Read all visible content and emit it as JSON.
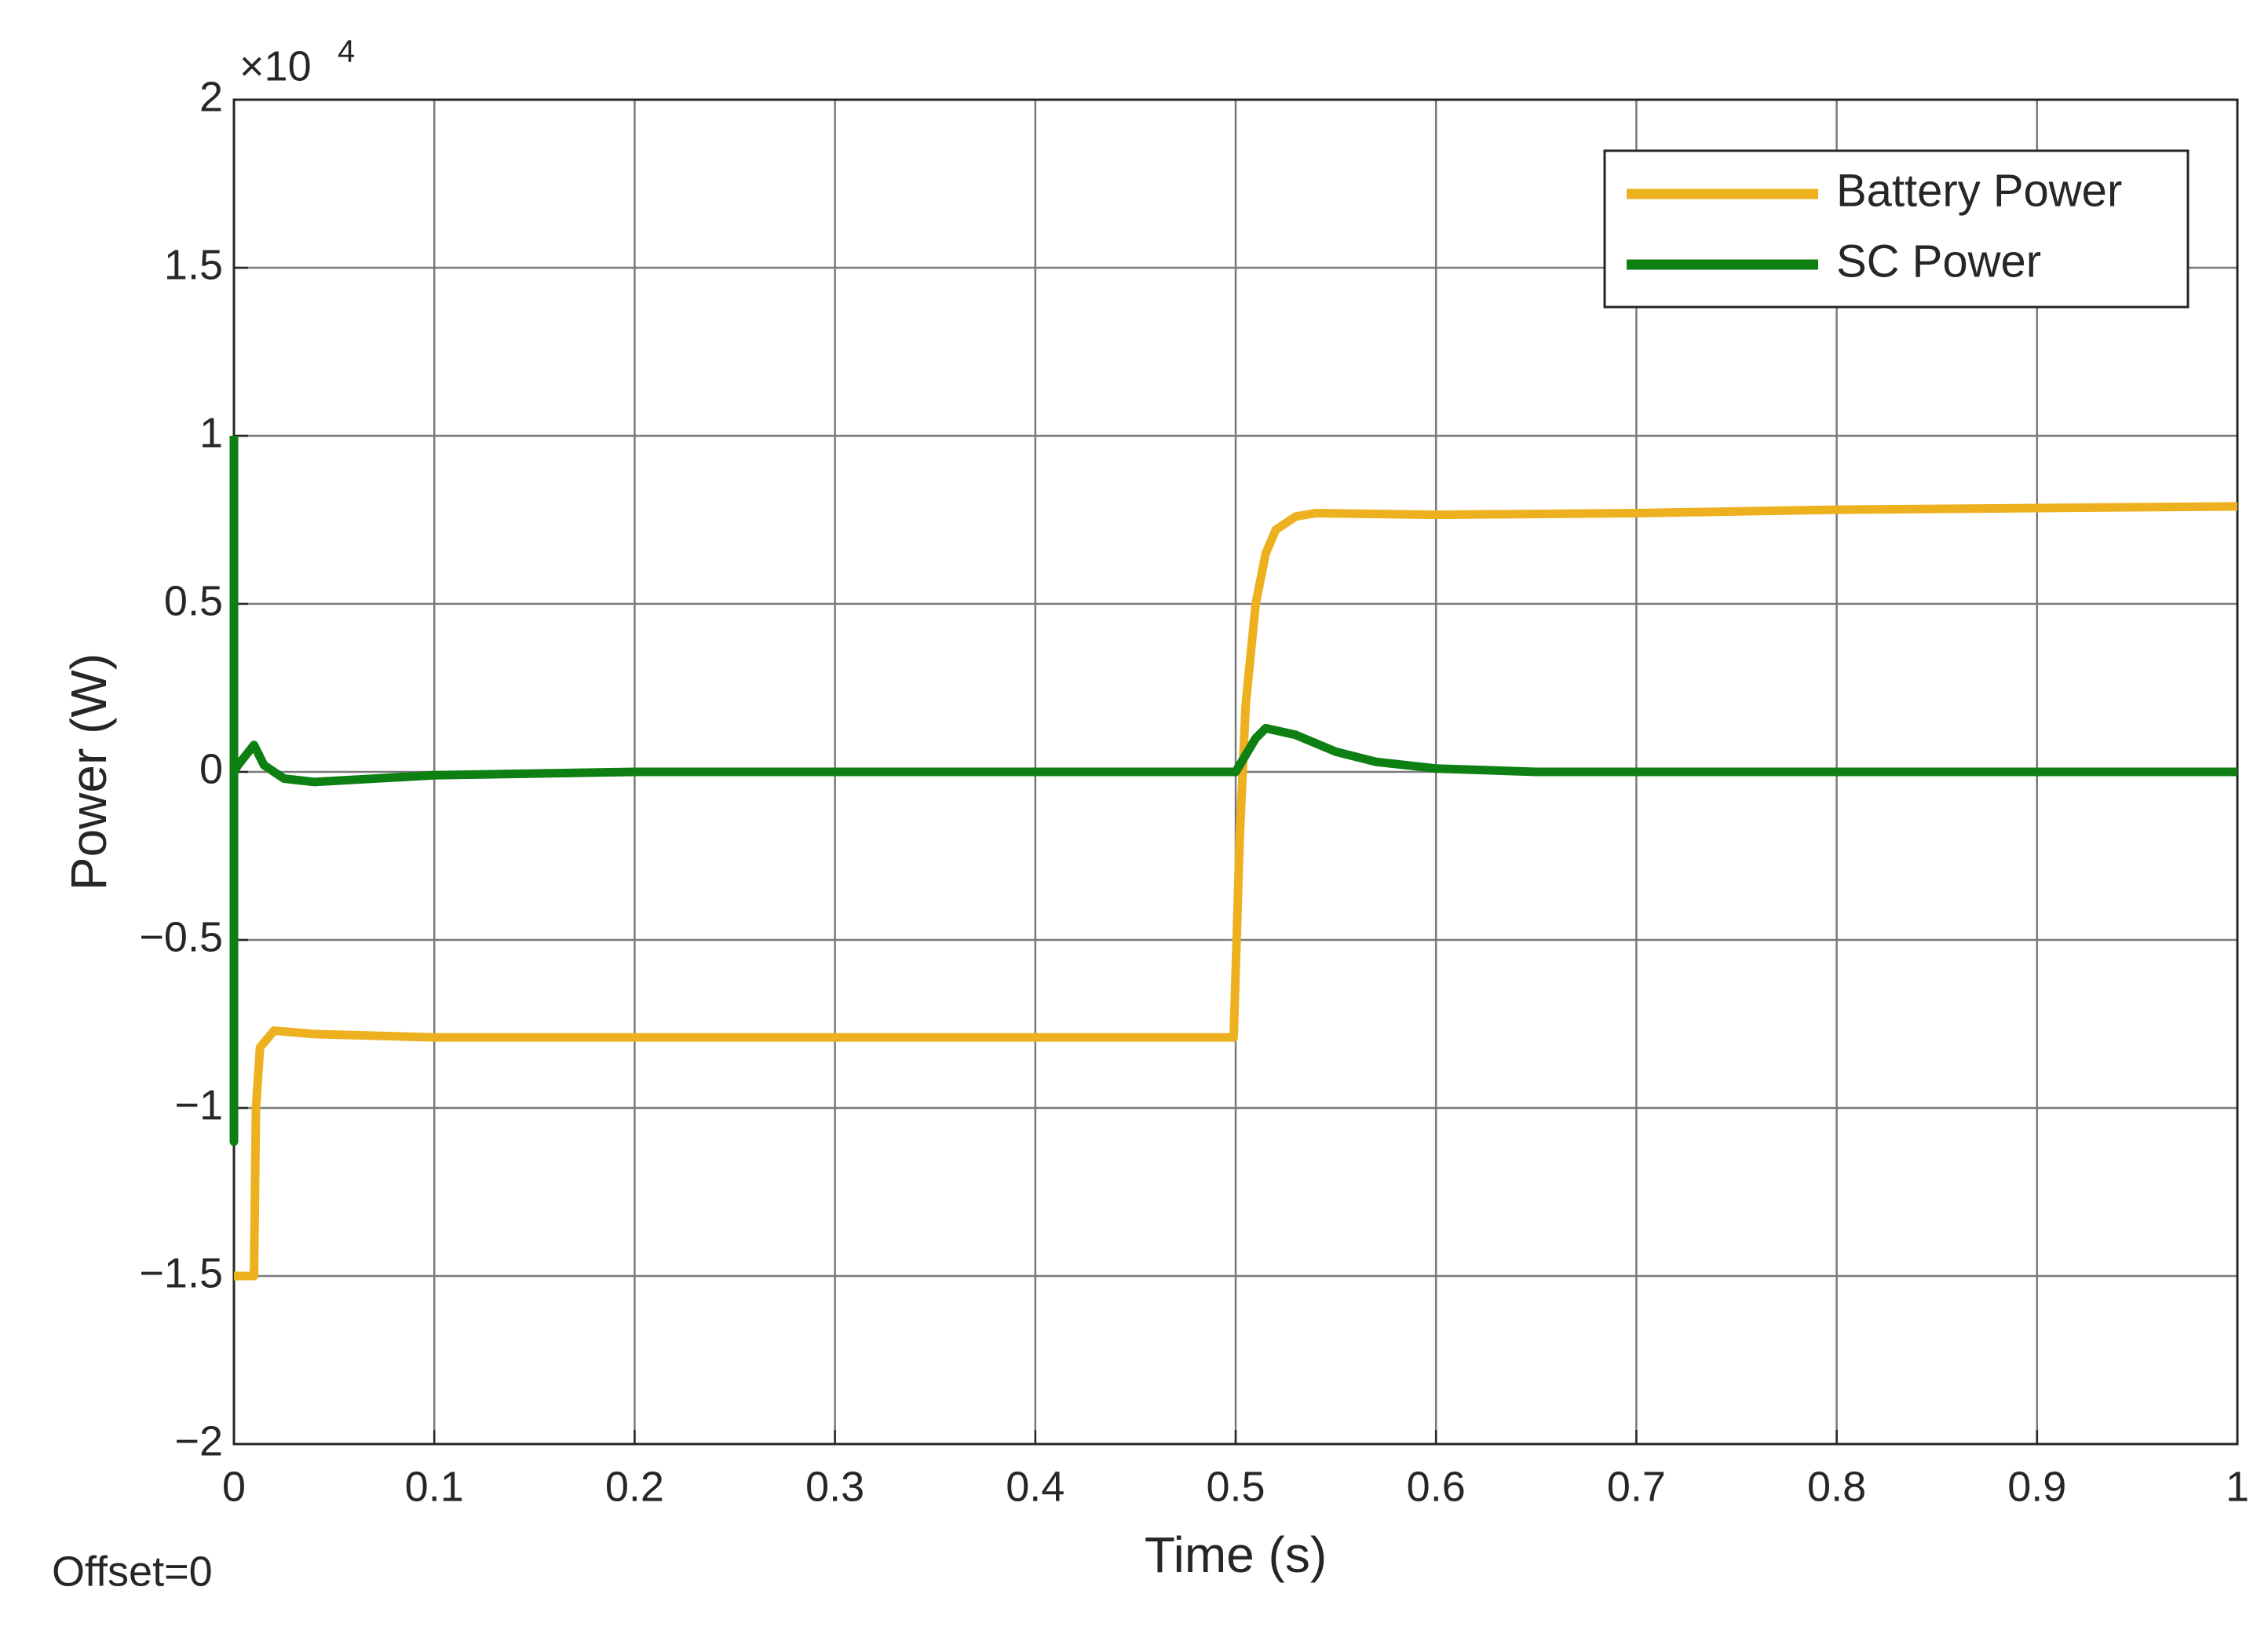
{
  "chart_data": {
    "type": "line",
    "xlabel": "Time (s)",
    "ylabel": "Power (W)",
    "y_multiplier": "×10",
    "y_exponent": 4,
    "note": "Offset=0",
    "grid": true,
    "legend": "top-right",
    "xlim": [
      0,
      1
    ],
    "xticks": [
      0,
      0.1,
      0.2,
      0.3,
      0.4,
      0.5,
      0.6,
      0.7,
      0.8,
      0.9,
      1
    ],
    "ylim": [
      -2,
      2
    ],
    "yticks": [
      {
        "value": -2,
        "label": "−2"
      },
      {
        "value": -1.5,
        "label": "−1.5"
      },
      {
        "value": -1,
        "label": "−1"
      },
      {
        "value": -0.5,
        "label": "−0.5"
      },
      0,
      0.5,
      1,
      1.5,
      2
    ],
    "series": [
      {
        "name": "Battery Power",
        "color": "#edb120",
        "x": [
          0,
          0.01,
          0.011,
          0.013,
          0.02,
          0.04,
          0.1,
          0.3,
          0.499,
          0.502,
          0.505,
          0.51,
          0.515,
          0.52,
          0.53,
          0.54,
          0.6,
          0.7,
          0.8,
          0.9,
          1.0
        ],
        "values": [
          -1.5,
          -1.5,
          -1.0,
          -0.82,
          -0.77,
          -0.78,
          -0.79,
          -0.79,
          -0.79,
          -0.2,
          0.2,
          0.5,
          0.65,
          0.72,
          0.76,
          0.77,
          0.765,
          0.77,
          0.78,
          0.785,
          0.79
        ]
      },
      {
        "name": "SC Power",
        "color": "#0e7f12",
        "x": [
          0,
          0,
          0,
          0.002,
          0.01,
          0.015,
          0.025,
          0.04,
          0.07,
          0.1,
          0.2,
          0.5,
          0.51,
          0.515,
          0.53,
          0.55,
          0.57,
          0.6,
          0.65,
          1.0
        ],
        "values": [
          1.0,
          -1.1,
          0.0,
          0.02,
          0.08,
          0.02,
          -0.02,
          -0.03,
          -0.02,
          -0.01,
          0,
          0,
          0.1,
          0.13,
          0.11,
          0.06,
          0.03,
          0.01,
          0,
          0
        ]
      }
    ]
  }
}
